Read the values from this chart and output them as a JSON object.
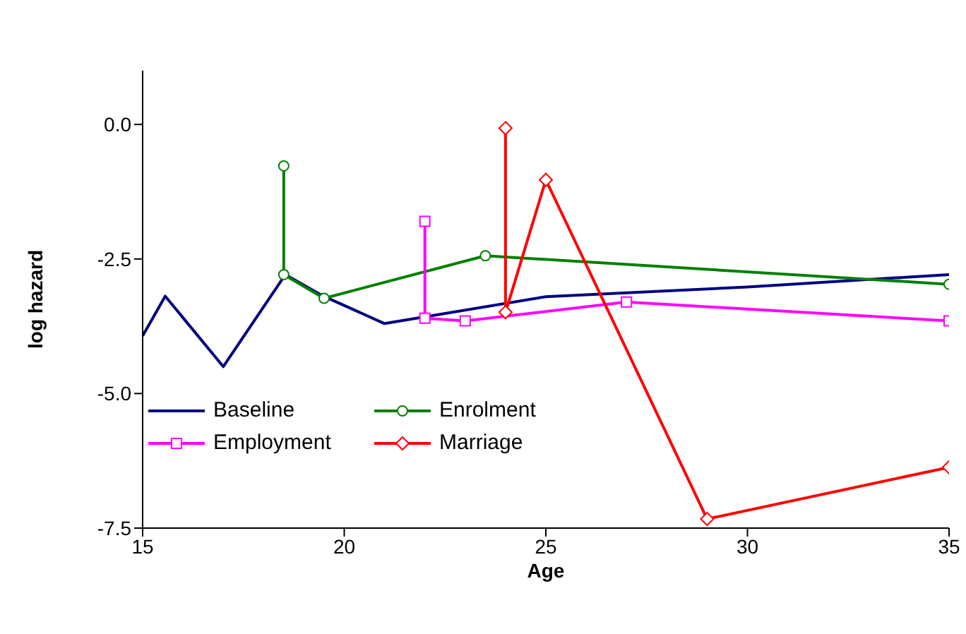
{
  "chart_data": {
    "type": "line",
    "xlabel": "Age",
    "ylabel": "log hazard",
    "xlim": [
      15,
      35
    ],
    "xticks": [
      15,
      20,
      25,
      30,
      35
    ],
    "ylim": [
      -7.5,
      1
    ],
    "yticks": [
      {
        "value": 0,
        "label": "0.0"
      },
      -2.5,
      {
        "value": -5,
        "label": "-5.0"
      },
      -7.5
    ],
    "grid": false,
    "legend": "left",
    "series": [
      {
        "name": "Baseline",
        "color": "#000080",
        "marker": "none",
        "x": [
          15,
          15.56,
          17,
          18.54,
          19.48,
          21,
          25,
          30,
          35
        ],
        "values": [
          -3.93,
          -3.19,
          -4.5,
          -2.79,
          -3.19,
          -3.7,
          -3.2,
          -3.02,
          -2.79
        ]
      },
      {
        "name": "Enrolment",
        "color": "#008000",
        "marker": "circle",
        "x": [
          18.5,
          18.5,
          19.5,
          23.5,
          35
        ],
        "values": [
          -0.77,
          -2.79,
          -3.23,
          -2.44,
          -2.97
        ]
      },
      {
        "name": "Employment",
        "color": "#ff00ff",
        "marker": "square",
        "x": [
          22,
          22,
          23,
          27,
          35
        ],
        "values": [
          -1.8,
          -3.6,
          -3.65,
          -3.3,
          -3.65
        ]
      },
      {
        "name": "Marriage",
        "color": "#ff0000",
        "marker": "diamond",
        "x": [
          24,
          24,
          25,
          29,
          35
        ],
        "values": [
          -0.07,
          -3.49,
          -1.03,
          -7.33,
          -6.37
        ]
      }
    ]
  }
}
